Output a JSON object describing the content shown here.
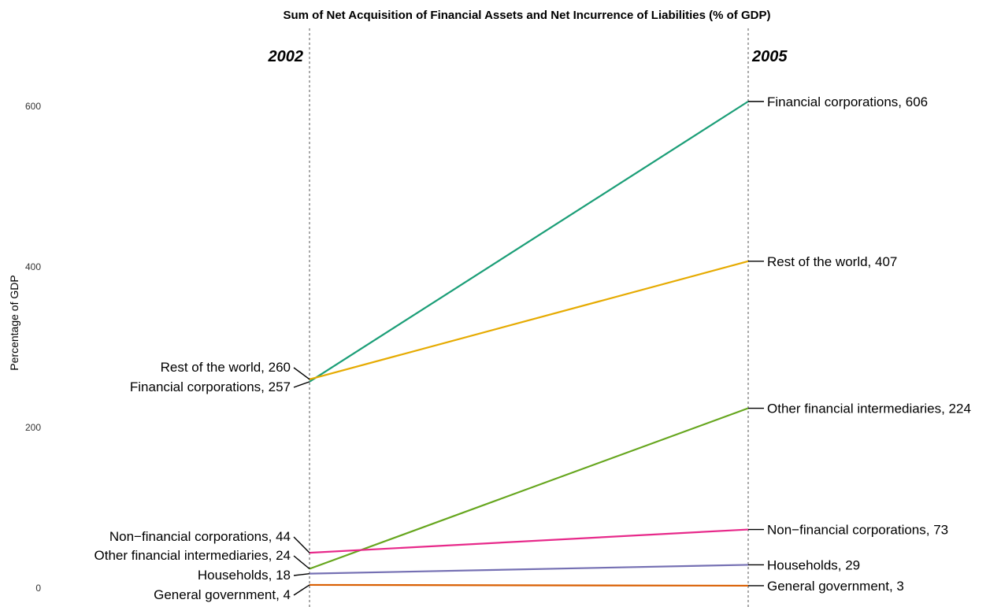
{
  "chart_data": {
    "type": "line",
    "title": "Sum of Net Acquisition of Financial Assets and Net Incurrence of Liabilities (% of GDP)",
    "ylabel": "Percentage of GDP",
    "xlabel": "",
    "x": [
      "2002",
      "2005"
    ],
    "ylim": [
      0,
      620
    ],
    "yticks": [
      "0",
      "200",
      "400",
      "600"
    ],
    "grid": false,
    "series": [
      {
        "name": "Financial corporations",
        "values": [
          257,
          606
        ],
        "color": "#1b9e77",
        "label_start": "Financial corporations, 257",
        "label_end": "Financial corporations, 606"
      },
      {
        "name": "Rest of the world",
        "values": [
          260,
          407
        ],
        "color": "#e6ab02",
        "label_start": "Rest of the world, 260",
        "label_end": "Rest of the world, 407"
      },
      {
        "name": "Other financial intermediaries",
        "values": [
          24,
          224
        ],
        "color": "#66a61e",
        "label_start": "Other financial intermediaries, 24",
        "label_end": "Other financial intermediaries, 224"
      },
      {
        "name": "Non-financial corporations",
        "values": [
          44,
          73
        ],
        "color": "#e7298a",
        "label_start": "Non−financial corporations, 44",
        "label_end": "Non−financial corporations, 73"
      },
      {
        "name": "Households",
        "values": [
          18,
          29
        ],
        "color": "#7570b3",
        "label_start": "Households, 18",
        "label_end": "Households, 29"
      },
      {
        "name": "General government",
        "values": [
          4,
          3
        ],
        "color": "#d95f02",
        "label_start": "General government, 4",
        "label_end": "General government, 3"
      }
    ]
  }
}
